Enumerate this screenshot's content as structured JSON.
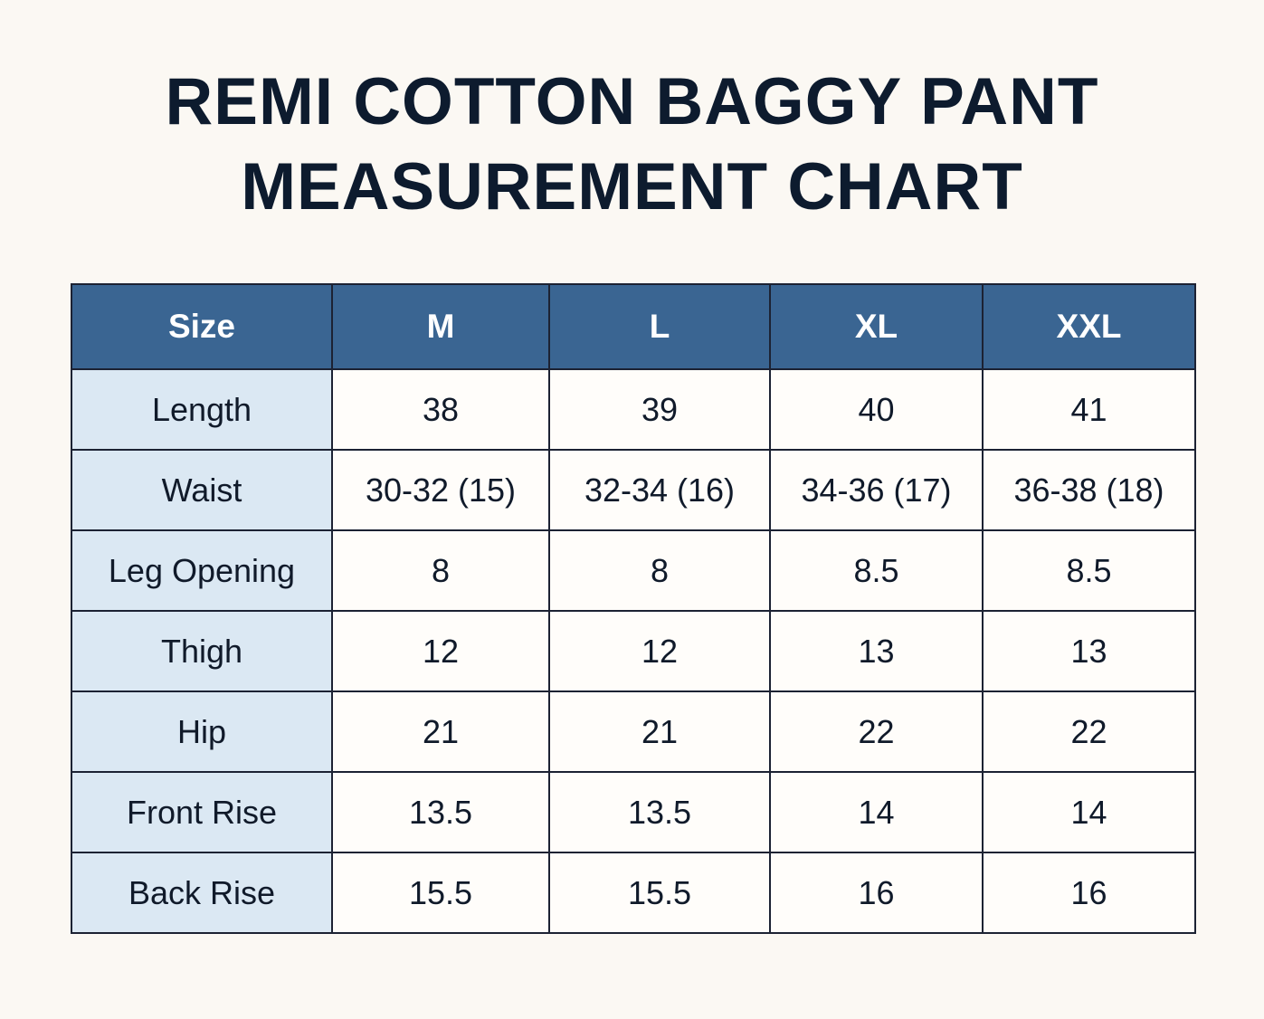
{
  "header": {
    "title": [
      "REMI COTTON BAGGY PANT",
      "MEASUREMENT CHART"
    ]
  },
  "table": {
    "columns": [
      "Size",
      "M",
      "L",
      "XL",
      "XXL"
    ],
    "rows": [
      [
        "Length",
        "38",
        "39",
        "40",
        "41"
      ],
      [
        "Waist",
        "30-32 (15)",
        "32-34 (16)",
        "34-36 (17)",
        "36-38 (18)"
      ],
      [
        "Leg Opening",
        "8",
        "8",
        "8.5",
        "8.5"
      ],
      [
        "Thigh",
        "12",
        "12",
        "13",
        "13"
      ],
      [
        "Hip",
        "21",
        "21",
        "22",
        "22"
      ],
      [
        "Front Rise",
        "13.5",
        "13.5",
        "14",
        "14"
      ],
      [
        "Back Rise",
        "15.5",
        "15.5",
        "16",
        "16"
      ]
    ]
  }
}
